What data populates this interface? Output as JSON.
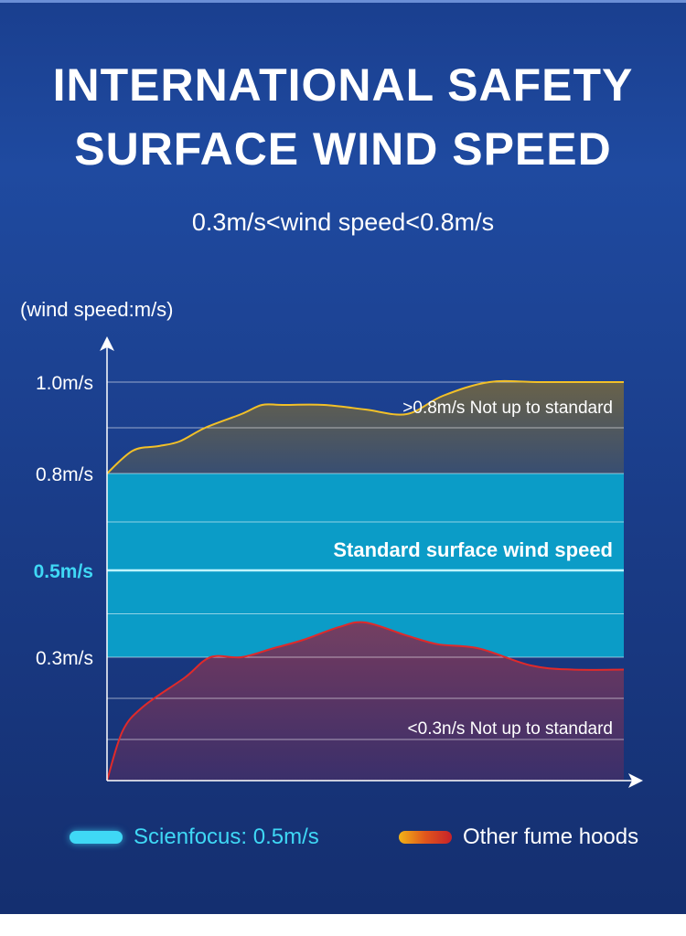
{
  "header": {
    "title_line1": "INTERNATIONAL SAFETY",
    "title_line2": "SURFACE WIND SPEED",
    "subtitle": "0.3m/s<wind speed<0.8m/s"
  },
  "chart_data": {
    "type": "area",
    "ylabel": "(wind speed:m/s)",
    "y_ticks": [
      {
        "value": 1.0,
        "label": "1.0m/s"
      },
      {
        "value": 0.8,
        "label": "0.8m/s"
      },
      {
        "value": 0.5,
        "label": "0.5m/s"
      },
      {
        "value": 0.3,
        "label": "0.3m/s"
      }
    ],
    "ylim": [
      0.0,
      1.0
    ],
    "band": {
      "from": 0.3,
      "to": 0.8,
      "color": "#0b9cc7"
    },
    "reference_line": {
      "value": 0.5,
      "label": "Standard surface wind speed",
      "color": "#3fd8f5"
    },
    "series": [
      {
        "name": "upper",
        "color": "#f2c028",
        "annotation": ">0.8m/s Not up to standard",
        "x": [
          0,
          0.05,
          0.1,
          0.14,
          0.19,
          0.26,
          0.3,
          0.34,
          0.42,
          0.5,
          0.58,
          0.65,
          0.74,
          0.84,
          1.0
        ],
        "y": [
          0.8,
          0.85,
          0.86,
          0.87,
          0.9,
          0.93,
          0.95,
          0.95,
          0.95,
          0.94,
          0.93,
          0.97,
          1.0,
          1.0,
          1.0
        ]
      },
      {
        "name": "lower",
        "color": "#e02a2a",
        "annotation": "<0.3n/s Not up to standard",
        "x": [
          0,
          0.03,
          0.07,
          0.15,
          0.2,
          0.26,
          0.32,
          0.38,
          0.45,
          0.5,
          0.58,
          0.64,
          0.72,
          0.82,
          0.9,
          1.0
        ],
        "y": [
          0.0,
          0.12,
          0.18,
          0.25,
          0.3,
          0.3,
          0.32,
          0.34,
          0.37,
          0.38,
          0.35,
          0.33,
          0.32,
          0.28,
          0.27,
          0.27
        ]
      }
    ]
  },
  "legend": {
    "scienfocus": "Scienfocus: 0.5m/s",
    "other": "Other fume hoods"
  }
}
